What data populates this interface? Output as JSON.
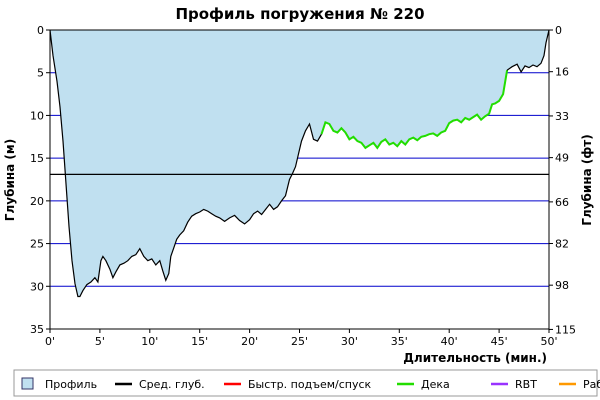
{
  "chart_data": {
    "type": "area",
    "title": "Профиль погружения № 220",
    "xlabel": "Длительность (мин.)",
    "ylabel_left": "Глубина (м)",
    "ylabel_right": "Глубина (фт)",
    "xlim": [
      0,
      50
    ],
    "ylim": [
      0,
      35
    ],
    "y_inverted": true,
    "x_ticks": [
      0,
      5,
      10,
      15,
      20,
      25,
      30,
      35,
      40,
      45,
      50
    ],
    "x_tick_labels": [
      "0'",
      "5'",
      "10'",
      "15'",
      "20'",
      "25'",
      "30'",
      "35'",
      "40'",
      "45'",
      "50'"
    ],
    "y_ticks_left": [
      0,
      5,
      10,
      15,
      20,
      25,
      30,
      35
    ],
    "y_tick_labels_left": [
      "0",
      "5",
      "10",
      "15",
      "20",
      "25",
      "30",
      "35"
    ],
    "y_ticks_right_depth_m": [
      0,
      4.88,
      10.06,
      14.94,
      20.12,
      24.99,
      29.87,
      35.05
    ],
    "y_tick_labels_right": [
      "0",
      "16",
      "33",
      "49",
      "66",
      "82",
      "98",
      "115"
    ],
    "grid_depths_m": [
      5,
      10,
      15,
      20,
      25,
      30
    ],
    "average_depth_m": 16.9,
    "profile": {
      "name": "Профиль",
      "x": [
        0,
        0.3,
        0.7,
        1,
        1.3,
        1.6,
        1.9,
        2.2,
        2.5,
        2.8,
        3,
        3.3,
        3.7,
        4.1,
        4.5,
        4.8,
        5.1,
        5.3,
        5.6,
        6,
        6.3,
        6.6,
        7,
        7.4,
        7.8,
        8.2,
        8.6,
        9,
        9.4,
        9.8,
        10.2,
        10.6,
        11,
        11.3,
        11.6,
        11.9,
        12.1,
        12.4,
        12.7,
        13,
        13.4,
        13.8,
        14.2,
        14.6,
        15,
        15.4,
        15.8,
        16.2,
        16.6,
        17,
        17.5,
        18,
        18.5,
        19,
        19.5,
        20,
        20.4,
        20.8,
        21.2,
        21.6,
        22,
        22.4,
        22.8,
        23.2,
        23.6,
        24,
        24.3,
        24.6,
        24.9,
        25.2,
        25.6,
        26,
        26.4,
        26.8,
        27.2
      ],
      "depth": [
        0,
        3,
        6,
        9,
        13,
        18,
        23,
        27,
        29.7,
        31.2,
        31.2,
        30.5,
        29.8,
        29.5,
        29,
        29.5,
        27,
        26.5,
        27,
        28,
        29,
        28.3,
        27.5,
        27.3,
        27,
        26.5,
        26.3,
        25.6,
        26.5,
        27,
        26.8,
        27.5,
        27,
        28.2,
        29.3,
        28.5,
        26.5,
        25.5,
        24.5,
        24,
        23.5,
        22.5,
        21.8,
        21.5,
        21.3,
        21,
        21.2,
        21.5,
        21.8,
        22,
        22.4,
        22,
        21.7,
        22.3,
        22.7,
        22.2,
        21.5,
        21.2,
        21.6,
        21,
        20.4,
        21,
        20.7,
        20,
        19.4,
        17.5,
        16.8,
        16,
        14.5,
        13,
        11.8,
        11,
        12.8,
        13,
        12.2
      ],
      "color": "#c0e0f0"
    },
    "deco": {
      "name": "Дека",
      "x": [
        27.2,
        27.6,
        28,
        28.4,
        28.8,
        29.2,
        29.6,
        30,
        30.4,
        30.8,
        31.2,
        31.6,
        32,
        32.4,
        32.8,
        33.2,
        33.6,
        34,
        34.4,
        34.8,
        35.2,
        35.6,
        36,
        36.4,
        36.8,
        37.2,
        37.6,
        38,
        38.4,
        38.8,
        39.2,
        39.6,
        40,
        40.4,
        40.8,
        41.2,
        41.6,
        42,
        42.4,
        42.8,
        43.2,
        43.6,
        44,
        44.3,
        44.6,
        45,
        45.4,
        45.8
      ],
      "depth": [
        12.2,
        10.8,
        11,
        11.8,
        12,
        11.5,
        12,
        12.8,
        12.5,
        13,
        13.2,
        13.8,
        13.5,
        13.2,
        13.8,
        13.1,
        12.8,
        13.4,
        13.2,
        13.6,
        13,
        13.4,
        12.8,
        12.6,
        12.9,
        12.5,
        12.4,
        12.2,
        12.1,
        12.4,
        12.0,
        11.8,
        10.9,
        10.6,
        10.5,
        10.8,
        10.3,
        10.5,
        10.2,
        9.9,
        10.5,
        10.1,
        9.8,
        8.7,
        8.6,
        8.3,
        7.5,
        4.7
      ],
      "color": "#22dd00"
    },
    "surface": {
      "x": [
        45.8,
        46.3,
        46.8,
        47.2,
        47.6,
        48,
        48.4,
        48.8,
        49.2,
        49.5,
        49.7,
        50
      ],
      "depth": [
        4.7,
        4.3,
        4.0,
        4.9,
        4.2,
        4.4,
        4.1,
        4.3,
        3.9,
        3.0,
        1.5,
        0
      ]
    },
    "legend": [
      {
        "label": "Профиль",
        "color": "#c0e0f0",
        "kind": "box"
      },
      {
        "label": "Сред. глуб.",
        "color": "#000000",
        "kind": "line"
      },
      {
        "label": "Быстр. подъем/спуск",
        "color": "#ff0000",
        "kind": "line"
      },
      {
        "label": "Дека",
        "color": "#22dd00",
        "kind": "line"
      },
      {
        "label": "RBT",
        "color": "#9933ff",
        "kind": "line"
      },
      {
        "label": "Раб.",
        "color": "#ff9900",
        "kind": "line"
      }
    ],
    "legend_position": "bottom",
    "grid": true,
    "colors": {
      "grid": "#0000cc",
      "average": "#000000",
      "profile_line": "#000000",
      "background": "#ffffff"
    }
  }
}
